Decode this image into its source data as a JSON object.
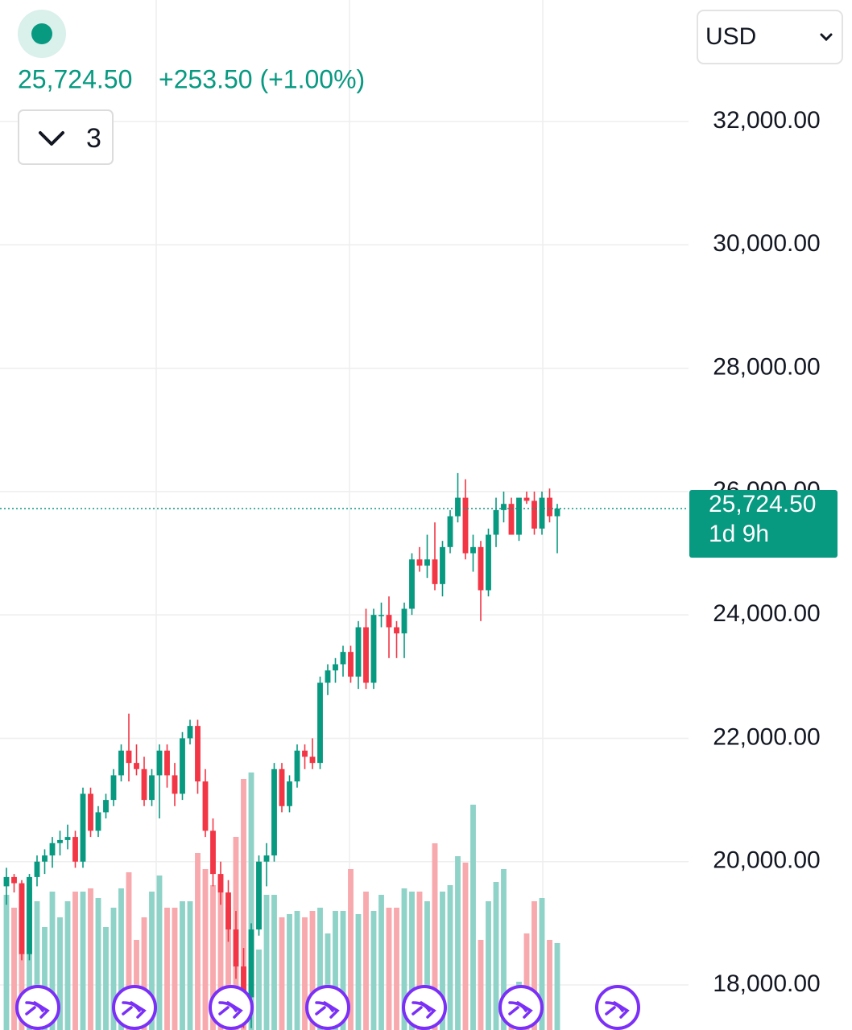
{
  "header": {
    "price": "25,724.50",
    "change": "+253.50 (+1.00%)",
    "indicator_count": "3",
    "currency": "USD"
  },
  "chart_data": {
    "type": "candlestick",
    "up_color": "#089981",
    "down_color": "#f23645",
    "up_volume_color": "#8fd3c8",
    "down_volume_color": "#f7a9ad",
    "ylim": [
      17270,
      33970
    ],
    "yticks": [
      {
        "value": 18000,
        "label": "18,000.00"
      },
      {
        "value": 20000,
        "label": "20,000.00"
      },
      {
        "value": 22000,
        "label": "22,000.00"
      },
      {
        "value": 24000,
        "label": "24,000.00"
      },
      {
        "value": 26000,
        "label": "26,000.00"
      },
      {
        "value": 28000,
        "label": "28,000.00"
      },
      {
        "value": 30000,
        "label": "30,000.00"
      },
      {
        "value": 32000,
        "label": "32,000.00"
      }
    ],
    "grid": true,
    "last_price": {
      "value": 25724.5,
      "label": "25,724.50"
    },
    "countdown": "1d 9h",
    "candles": [
      [
        19600,
        19900,
        19300,
        19750
      ],
      [
        19750,
        19800,
        19500,
        19650
      ],
      [
        19650,
        19700,
        18400,
        18500
      ],
      [
        18500,
        19800,
        18400,
        19750
      ],
      [
        19750,
        20100,
        19600,
        20000
      ],
      [
        20000,
        20200,
        19800,
        20100
      ],
      [
        20100,
        20400,
        19900,
        20300
      ],
      [
        20300,
        20500,
        20100,
        20350
      ],
      [
        20350,
        20600,
        20200,
        20400
      ],
      [
        20400,
        20500,
        19900,
        20000
      ],
      [
        20000,
        21200,
        19900,
        21100
      ],
      [
        21100,
        21200,
        20400,
        20500
      ],
      [
        20500,
        20900,
        20400,
        20800
      ],
      [
        20800,
        21100,
        20700,
        21000
      ],
      [
        21000,
        21500,
        20900,
        21400
      ],
      [
        21400,
        21900,
        21300,
        21800
      ],
      [
        21800,
        22400,
        21300,
        21600
      ],
      [
        21600,
        21900,
        21400,
        21500
      ],
      [
        21500,
        21700,
        20900,
        21000
      ],
      [
        21000,
        21500,
        20900,
        21400
      ],
      [
        21400,
        21900,
        20700,
        21800
      ],
      [
        21800,
        21900,
        21200,
        21400
      ],
      [
        21400,
        21600,
        20900,
        21100
      ],
      [
        21100,
        22100,
        21000,
        22000
      ],
      [
        22000,
        22300,
        21900,
        22200
      ],
      [
        22200,
        22300,
        21100,
        21300
      ],
      [
        21300,
        21500,
        20400,
        20500
      ],
      [
        20500,
        20700,
        19600,
        19800
      ],
      [
        19800,
        20000,
        19300,
        19500
      ],
      [
        19500,
        19700,
        18700,
        18900
      ],
      [
        18900,
        19200,
        18100,
        18300
      ],
      [
        18300,
        18600,
        17300,
        17800
      ],
      [
        17800,
        19000,
        17300,
        18900
      ],
      [
        18900,
        20100,
        18800,
        20000
      ],
      [
        20000,
        20300,
        19600,
        20100
      ],
      [
        20100,
        21600,
        20000,
        21500
      ],
      [
        21500,
        21600,
        20800,
        20900
      ],
      [
        20900,
        21400,
        20800,
        21300
      ],
      [
        21300,
        21900,
        21200,
        21800
      ],
      [
        21800,
        21900,
        21500,
        21700
      ],
      [
        21700,
        22000,
        21500,
        21600
      ],
      [
        21600,
        23000,
        21500,
        22900
      ],
      [
        22900,
        23200,
        22700,
        23100
      ],
      [
        23100,
        23300,
        22900,
        23200
      ],
      [
        23200,
        23500,
        23000,
        23400
      ],
      [
        23400,
        23500,
        22900,
        23000
      ],
      [
        23000,
        23900,
        22800,
        23800
      ],
      [
        23800,
        24100,
        22800,
        22900
      ],
      [
        22900,
        24100,
        22800,
        24000
      ],
      [
        24000,
        24200,
        23800,
        24000
      ],
      [
        24000,
        24300,
        23300,
        23800
      ],
      [
        23800,
        23900,
        23300,
        23700
      ],
      [
        23700,
        24200,
        23300,
        24100
      ],
      [
        24100,
        25000,
        24000,
        24900
      ],
      [
        24900,
        25100,
        24700,
        24800
      ],
      [
        24800,
        25300,
        24600,
        24900
      ],
      [
        24900,
        25500,
        24400,
        24500
      ],
      [
        24500,
        25200,
        24300,
        25100
      ],
      [
        25100,
        25700,
        25000,
        25600
      ],
      [
        25600,
        26300,
        25500,
        25900
      ],
      [
        25900,
        26200,
        24900,
        25000
      ],
      [
        25000,
        25300,
        24700,
        25100
      ],
      [
        25100,
        25200,
        23900,
        24400
      ],
      [
        24400,
        25400,
        24300,
        25300
      ],
      [
        25300,
        25900,
        25100,
        25700
      ],
      [
        25700,
        26000,
        25500,
        25800
      ],
      [
        25800,
        25900,
        25300,
        25300
      ],
      [
        25300,
        25900,
        25200,
        25900
      ],
      [
        25900,
        26000,
        25800,
        25850
      ],
      [
        25850,
        26000,
        25300,
        25400
      ],
      [
        25400,
        26000,
        25300,
        25900
      ],
      [
        25900,
        26050,
        25500,
        25600
      ],
      [
        25600,
        25800,
        25000,
        25724.5
      ]
    ],
    "volume_lim": [
      0,
      100
    ],
    "volume": [
      42,
      38,
      45,
      44,
      40,
      32,
      43,
      35,
      40,
      43,
      43,
      44,
      41,
      32,
      38,
      44,
      49,
      28,
      35,
      43,
      48,
      38,
      38,
      40,
      40,
      55,
      50,
      45,
      48,
      38,
      60,
      78,
      80,
      25,
      42,
      42,
      35,
      36,
      37,
      35,
      37,
      38,
      30,
      37,
      37,
      50,
      36,
      43,
      37,
      42,
      38,
      38,
      44,
      43,
      43,
      40,
      58,
      43,
      45,
      54,
      52,
      70,
      28,
      40,
      46,
      50,
      13,
      15,
      30,
      40,
      41,
      28,
      27
    ]
  }
}
